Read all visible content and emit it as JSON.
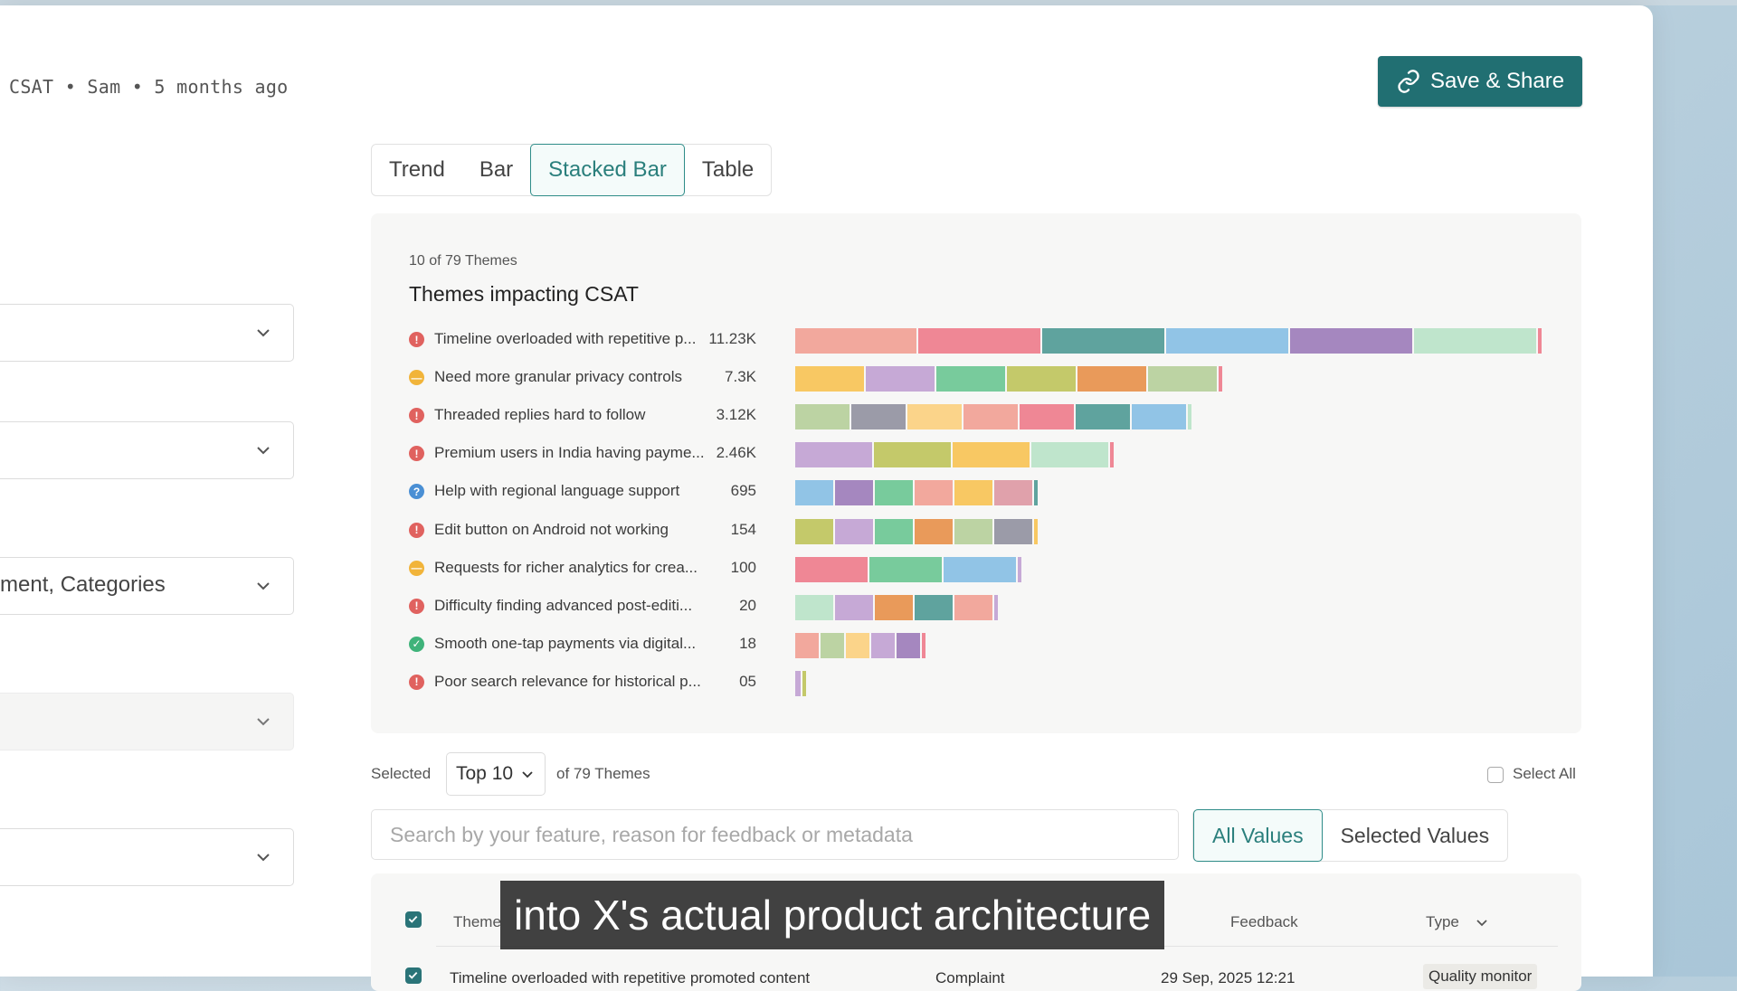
{
  "header": {
    "meta": "CSAT • Sam • 5 months ago",
    "save_label": "Save & Share"
  },
  "filters": {
    "third_value": "ment, Categories"
  },
  "view_tabs": [
    "Trend",
    "Bar",
    "Stacked Bar",
    "Table"
  ],
  "active_view": "Stacked Bar",
  "chart_data": {
    "type": "bar",
    "orientation": "horizontal",
    "stacked": true,
    "subtitle": "10 of 79 Themes",
    "title": "Themes impacting CSAT",
    "categories": [
      "Timeline overloaded with repetitive p...",
      "Need more granular privacy controls",
      "Threaded replies hard to follow",
      "Premium users in India having payme...",
      "Help with regional language support",
      "Edit button on Android not working",
      "Requests for richer analytics for crea...",
      "Difficulty finding advanced post-editi...",
      "Smooth one-tap payments via digital...",
      "Poor search relevance for historical p..."
    ],
    "value_labels": [
      "11.23K",
      "7.3K",
      "3.12K",
      "2.46K",
      "695",
      "154",
      "100",
      "20",
      "18",
      "05"
    ],
    "values": [
      11230,
      7300,
      3120,
      2460,
      695,
      154,
      100,
      20,
      18,
      5
    ],
    "status_icons": [
      "alert",
      "neutral",
      "alert",
      "alert",
      "question",
      "alert",
      "neutral",
      "alert",
      "check",
      "alert"
    ],
    "segments": [
      [
        1,
        1,
        1,
        1,
        1,
        1,
        0.04
      ],
      [
        1,
        1,
        1,
        1,
        1,
        1,
        0.05
      ],
      [
        1,
        1,
        1,
        1,
        1,
        1,
        1,
        0.05
      ],
      [
        1,
        1,
        1,
        1,
        0.04
      ],
      [
        1,
        1,
        1,
        1,
        1,
        1,
        0.08
      ],
      [
        1,
        1,
        1,
        1,
        1,
        1,
        0.06
      ],
      [
        1,
        1,
        1,
        0.06
      ],
      [
        1,
        1,
        1,
        1,
        1,
        0.07
      ],
      [
        1,
        1,
        1,
        1,
        1,
        0.1
      ],
      [
        0.5,
        0.5
      ]
    ],
    "segment_colors": [
      [
        "#f2a89d",
        "#ef8795",
        "#5fa39e",
        "#91c4e6",
        "#a587bf",
        "#bfe5cc",
        "#ef8795"
      ],
      [
        "#f8c863",
        "#c6a9d6",
        "#78cb9c",
        "#c4c96a",
        "#e99a5a",
        "#bcd3a3",
        "#ef8795"
      ],
      [
        "#bcd3a3",
        "#9b9ba8",
        "#fbd48a",
        "#f2a89d",
        "#ef8795",
        "#5fa39e",
        "#91c4e6",
        "#bfe5cc"
      ],
      [
        "#c6a9d6",
        "#c4c96a",
        "#f8c863",
        "#bfe5cc",
        "#ef8795"
      ],
      [
        "#91c4e6",
        "#a587bf",
        "#78cb9c",
        "#f2a89d",
        "#f8c863",
        "#e0a1ab",
        "#5fa39e"
      ],
      [
        "#c4c96a",
        "#c6a9d6",
        "#78cb9c",
        "#e99a5a",
        "#bcd3a3",
        "#9b9ba8",
        "#f8c863"
      ],
      [
        "#ef8795",
        "#78cb9c",
        "#91c4e6",
        "#c6a9d6"
      ],
      [
        "#bfe5cc",
        "#c6a9d6",
        "#e99a5a",
        "#5fa39e",
        "#f2a89d",
        "#c6a9d6"
      ],
      [
        "#f2a89d",
        "#bcd3a3",
        "#fbd48a",
        "#c6a9d6",
        "#a587bf",
        "#ef8795"
      ],
      [
        "#c6a9d6",
        "#c4c96a"
      ]
    ],
    "segment_unit_widths": [
      [
        134,
        135,
        135,
        135,
        135,
        135,
        4
      ],
      [
        76,
        76,
        76,
        76,
        76,
        76,
        4
      ],
      [
        60,
        60,
        60,
        60,
        60,
        60,
        60,
        4
      ],
      [
        85,
        85,
        85,
        85,
        4
      ],
      [
        42,
        42,
        42,
        42,
        42,
        42,
        4
      ],
      [
        42,
        42,
        42,
        42,
        42,
        42,
        4
      ],
      [
        80,
        80,
        80,
        4
      ],
      [
        42,
        42,
        42,
        42,
        42,
        4
      ],
      [
        26,
        26,
        26,
        26,
        26,
        4
      ],
      [
        6,
        4
      ]
    ]
  },
  "selection": {
    "label": "Selected",
    "top": "Top 10",
    "of": "of 79 Themes",
    "select_all": "Select All"
  },
  "search": {
    "placeholder": "Search by your feature, reason for feedback or metadata"
  },
  "value_tabs": [
    "All Values",
    "Selected Values"
  ],
  "table": {
    "headers": {
      "theme": "Theme",
      "feedback": "Feedback",
      "type": "Type"
    },
    "row": {
      "theme": "Timeline overloaded with repetitive promoted content",
      "category": "Complaint",
      "date": "29 Sep, 2025 12:21",
      "type": "Quality monitor"
    }
  },
  "caption": "into X's actual product architecture"
}
